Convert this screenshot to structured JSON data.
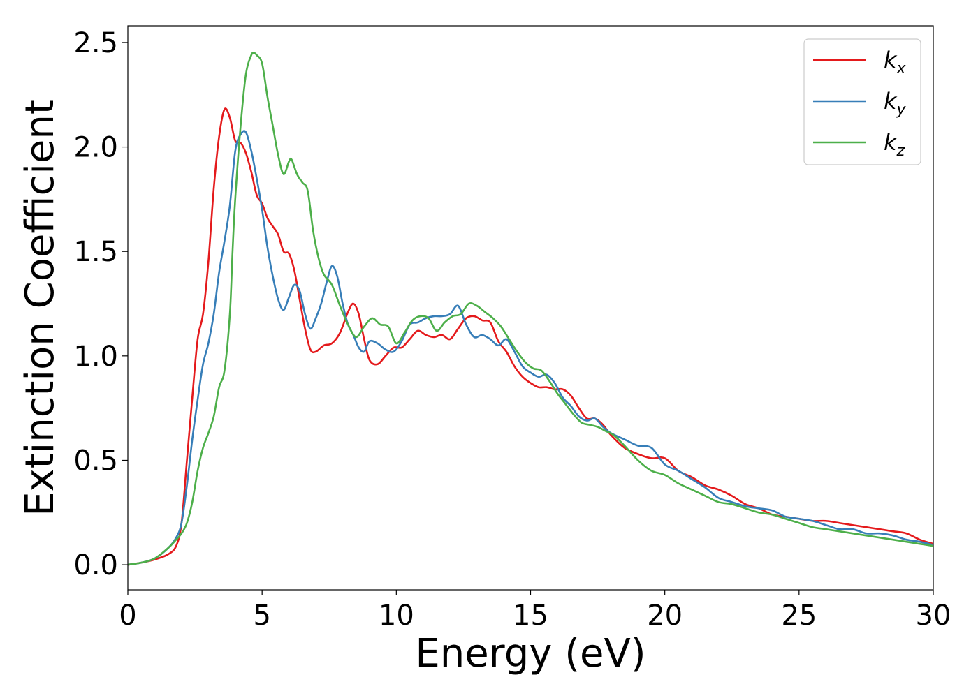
{
  "chart_data": {
    "type": "line",
    "title": "",
    "xlabel": "Energy (eV)",
    "ylabel": "Extinction Coefficient",
    "xlim": [
      0,
      30
    ],
    "ylim": [
      -0.12,
      2.58
    ],
    "xticks": [
      0,
      5,
      10,
      15,
      20,
      25,
      30
    ],
    "xtick_labels": [
      "0",
      "5",
      "10",
      "15",
      "20",
      "25",
      "30"
    ],
    "yticks": [
      0.0,
      0.5,
      1.0,
      1.5,
      2.0,
      2.5
    ],
    "ytick_labels": [
      "0.0",
      "0.5",
      "1.0",
      "1.5",
      "2.0",
      "2.5"
    ],
    "grid": false,
    "legend_position": "top-right",
    "series": [
      {
        "name": "k",
        "subscript": "x",
        "color": "#e41a1c",
        "x": [
          0,
          0.5,
          1.0,
          1.5,
          1.8,
          2.0,
          2.2,
          2.4,
          2.6,
          2.8,
          3.0,
          3.2,
          3.4,
          3.6,
          3.8,
          4.0,
          4.2,
          4.4,
          4.6,
          4.8,
          5.0,
          5.2,
          5.4,
          5.6,
          5.8,
          6.0,
          6.2,
          6.4,
          6.6,
          6.8,
          7.0,
          7.3,
          7.6,
          7.9,
          8.2,
          8.4,
          8.6,
          8.8,
          9.0,
          9.3,
          9.6,
          9.9,
          10.2,
          10.5,
          10.8,
          11.1,
          11.4,
          11.7,
          12.0,
          12.3,
          12.6,
          12.9,
          13.2,
          13.5,
          13.8,
          14.1,
          14.4,
          14.7,
          15.0,
          15.3,
          15.6,
          15.9,
          16.2,
          16.5,
          16.8,
          17.1,
          17.4,
          17.7,
          18.0,
          18.5,
          19.0,
          19.5,
          20.0,
          20.5,
          21.0,
          21.5,
          22.0,
          22.5,
          23.0,
          23.5,
          24.0,
          24.5,
          25.0,
          25.5,
          26.0,
          26.5,
          27.0,
          27.5,
          28.0,
          28.5,
          29.0,
          29.5,
          30.0
        ],
        "y": [
          0.0,
          0.01,
          0.025,
          0.05,
          0.09,
          0.2,
          0.5,
          0.8,
          1.08,
          1.2,
          1.45,
          1.8,
          2.05,
          2.18,
          2.14,
          2.03,
          2.02,
          1.97,
          1.88,
          1.77,
          1.73,
          1.66,
          1.62,
          1.58,
          1.5,
          1.49,
          1.41,
          1.27,
          1.13,
          1.03,
          1.02,
          1.05,
          1.06,
          1.11,
          1.21,
          1.25,
          1.2,
          1.08,
          0.98,
          0.96,
          1.0,
          1.04,
          1.04,
          1.08,
          1.12,
          1.1,
          1.09,
          1.1,
          1.08,
          1.13,
          1.18,
          1.19,
          1.17,
          1.16,
          1.07,
          1.02,
          0.95,
          0.9,
          0.87,
          0.85,
          0.85,
          0.84,
          0.84,
          0.81,
          0.75,
          0.7,
          0.7,
          0.67,
          0.62,
          0.56,
          0.53,
          0.51,
          0.51,
          0.45,
          0.42,
          0.38,
          0.36,
          0.33,
          0.29,
          0.27,
          0.24,
          0.23,
          0.22,
          0.21,
          0.21,
          0.2,
          0.19,
          0.18,
          0.17,
          0.16,
          0.15,
          0.12,
          0.1
        ]
      },
      {
        "name": "k",
        "subscript": "y",
        "color": "#377eb8",
        "x": [
          0,
          0.5,
          1.0,
          1.5,
          1.8,
          2.0,
          2.2,
          2.4,
          2.6,
          2.8,
          3.0,
          3.2,
          3.4,
          3.6,
          3.8,
          4.0,
          4.2,
          4.4,
          4.6,
          4.8,
          5.0,
          5.2,
          5.4,
          5.6,
          5.8,
          6.0,
          6.2,
          6.4,
          6.6,
          6.8,
          7.0,
          7.2,
          7.4,
          7.6,
          7.8,
          8.0,
          8.2,
          8.4,
          8.6,
          8.8,
          9.0,
          9.3,
          9.6,
          9.9,
          10.2,
          10.5,
          10.8,
          11.1,
          11.4,
          11.7,
          12.0,
          12.3,
          12.6,
          12.9,
          13.2,
          13.5,
          13.8,
          14.1,
          14.4,
          14.7,
          15.0,
          15.3,
          15.6,
          15.9,
          16.2,
          16.5,
          16.8,
          17.1,
          17.4,
          17.7,
          18.0,
          18.5,
          19.0,
          19.5,
          20.0,
          20.5,
          21.0,
          21.5,
          22.0,
          22.5,
          23.0,
          23.5,
          24.0,
          24.5,
          25.0,
          25.5,
          26.0,
          26.5,
          27.0,
          27.5,
          28.0,
          28.5,
          29.0,
          29.5,
          30.0
        ],
        "y": [
          0.0,
          0.01,
          0.03,
          0.08,
          0.13,
          0.2,
          0.38,
          0.6,
          0.79,
          0.96,
          1.06,
          1.2,
          1.4,
          1.55,
          1.72,
          1.98,
          2.06,
          2.07,
          1.98,
          1.85,
          1.7,
          1.52,
          1.38,
          1.27,
          1.22,
          1.28,
          1.34,
          1.31,
          1.2,
          1.13,
          1.18,
          1.25,
          1.35,
          1.43,
          1.38,
          1.25,
          1.15,
          1.1,
          1.04,
          1.02,
          1.07,
          1.06,
          1.03,
          1.02,
          1.07,
          1.15,
          1.16,
          1.18,
          1.19,
          1.19,
          1.2,
          1.24,
          1.15,
          1.09,
          1.1,
          1.08,
          1.05,
          1.08,
          1.02,
          0.95,
          0.92,
          0.9,
          0.91,
          0.87,
          0.8,
          0.76,
          0.71,
          0.69,
          0.7,
          0.66,
          0.63,
          0.6,
          0.57,
          0.56,
          0.48,
          0.45,
          0.41,
          0.37,
          0.32,
          0.3,
          0.28,
          0.27,
          0.26,
          0.23,
          0.22,
          0.21,
          0.19,
          0.17,
          0.17,
          0.15,
          0.15,
          0.14,
          0.12,
          0.11,
          0.095
        ]
      },
      {
        "name": "k",
        "subscript": "z",
        "color": "#4daf4a",
        "x": [
          0,
          0.5,
          1.0,
          1.5,
          1.8,
          2.0,
          2.2,
          2.4,
          2.6,
          2.8,
          3.0,
          3.2,
          3.4,
          3.6,
          3.8,
          3.9,
          4.0,
          4.2,
          4.4,
          4.6,
          4.7,
          4.8,
          5.0,
          5.2,
          5.4,
          5.6,
          5.8,
          6.0,
          6.1,
          6.3,
          6.5,
          6.7,
          6.9,
          7.1,
          7.3,
          7.6,
          7.9,
          8.2,
          8.5,
          8.8,
          9.1,
          9.4,
          9.7,
          10.0,
          10.3,
          10.6,
          10.9,
          11.2,
          11.5,
          11.8,
          12.1,
          12.4,
          12.7,
          13.0,
          13.3,
          13.6,
          13.9,
          14.2,
          14.5,
          14.8,
          15.1,
          15.4,
          15.7,
          16.0,
          16.3,
          16.6,
          16.9,
          17.2,
          17.5,
          17.8,
          18.1,
          18.5,
          19.0,
          19.5,
          20.0,
          20.5,
          21.0,
          21.5,
          22.0,
          22.5,
          23.0,
          23.5,
          24.0,
          24.5,
          25.0,
          25.5,
          26.0,
          26.5,
          27.0,
          27.5,
          28.0,
          28.5,
          29.0,
          29.5,
          30.0
        ],
        "y": [
          0.0,
          0.01,
          0.03,
          0.08,
          0.12,
          0.15,
          0.2,
          0.3,
          0.45,
          0.56,
          0.63,
          0.71,
          0.85,
          0.93,
          1.2,
          1.5,
          1.75,
          2.1,
          2.35,
          2.44,
          2.45,
          2.44,
          2.4,
          2.24,
          2.1,
          1.96,
          1.87,
          1.93,
          1.94,
          1.87,
          1.83,
          1.79,
          1.6,
          1.47,
          1.39,
          1.34,
          1.24,
          1.15,
          1.09,
          1.14,
          1.18,
          1.15,
          1.14,
          1.06,
          1.11,
          1.17,
          1.19,
          1.18,
          1.12,
          1.16,
          1.19,
          1.2,
          1.25,
          1.24,
          1.21,
          1.18,
          1.14,
          1.08,
          1.02,
          0.97,
          0.94,
          0.93,
          0.88,
          0.82,
          0.77,
          0.72,
          0.68,
          0.67,
          0.66,
          0.64,
          0.62,
          0.57,
          0.5,
          0.45,
          0.43,
          0.39,
          0.36,
          0.33,
          0.3,
          0.29,
          0.27,
          0.25,
          0.24,
          0.22,
          0.2,
          0.18,
          0.17,
          0.16,
          0.15,
          0.14,
          0.13,
          0.12,
          0.11,
          0.1,
          0.09
        ]
      }
    ]
  }
}
